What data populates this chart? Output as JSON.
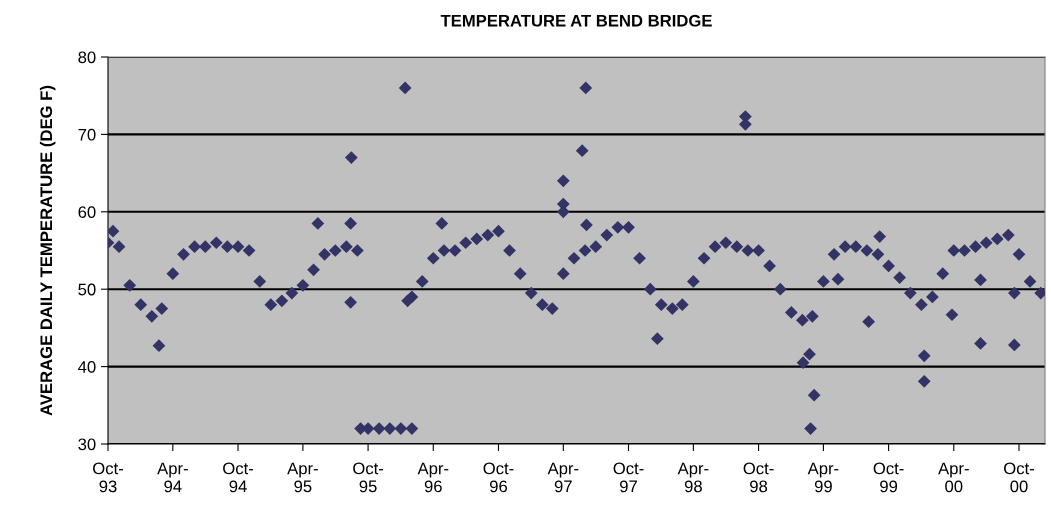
{
  "chart_data": {
    "type": "scatter",
    "title": "TEMPERATURE AT BEND BRIDGE",
    "ylabel": "AVERAGE DAILY TEMPERATURE (DEG F)",
    "xlim": [
      "1993-10-01",
      "2000-12-13"
    ],
    "ylim": [
      30,
      80
    ],
    "yticks": [
      30,
      40,
      50,
      60,
      70,
      80
    ],
    "xticks": [
      {
        "value": "1993-10-01",
        "label": "Oct-\n93"
      },
      {
        "value": "1994-04-01",
        "label": "Apr-\n94"
      },
      {
        "value": "1994-10-01",
        "label": "Oct-\n94"
      },
      {
        "value": "1995-04-01",
        "label": "Apr-\n95"
      },
      {
        "value": "1995-10-01",
        "label": "Oct-\n95"
      },
      {
        "value": "1996-04-01",
        "label": "Apr-\n96"
      },
      {
        "value": "1996-10-01",
        "label": "Oct-\n96"
      },
      {
        "value": "1997-04-01",
        "label": "Apr-\n97"
      },
      {
        "value": "1997-10-01",
        "label": "Oct-\n97"
      },
      {
        "value": "1998-04-01",
        "label": "Apr-\n98"
      },
      {
        "value": "1998-10-01",
        "label": "Oct-\n98"
      },
      {
        "value": "1999-04-01",
        "label": "Apr-\n99"
      },
      {
        "value": "1999-10-01",
        "label": "Oct-\n99"
      },
      {
        "value": "2000-04-01",
        "label": "Apr-\n00"
      },
      {
        "value": "2000-10-01",
        "label": "Oct-\n00"
      }
    ],
    "grid": "y",
    "marker": "diamond",
    "legend": false,
    "series": [
      {
        "color": "#333366",
        "x": [
          "1993-10-01",
          "1993-10-15",
          "1993-11-01",
          "1993-12-01",
          "1994-01-01",
          "1994-02-01",
          "1994-03-01",
          "1994-04-01",
          "1994-05-01",
          "1994-06-01",
          "1994-07-01",
          "1994-08-01",
          "1994-09-01",
          "1994-10-01",
          "1994-11-01",
          "1994-12-01",
          "1995-01-01",
          "1995-02-01",
          "1995-03-01",
          "1995-04-01",
          "1995-05-01",
          "1995-06-01",
          "1995-07-01",
          "1995-08-01",
          "1995-09-01",
          "1996-02-01",
          "1996-03-01",
          "1996-04-01",
          "1996-05-01",
          "1996-06-01",
          "1996-07-01",
          "1996-08-01",
          "1996-09-01",
          "1996-10-01",
          "1996-11-01",
          "1996-12-01",
          "1997-01-01",
          "1997-02-01",
          "1997-03-01",
          "1997-04-01",
          "1997-05-01",
          "1997-06-01",
          "1997-07-01",
          "1997-08-01",
          "1997-09-01",
          "1997-10-01",
          "1997-11-01",
          "1997-12-01",
          "1998-01-01",
          "1998-02-01",
          "1998-03-01",
          "1998-04-01",
          "1998-05-01",
          "1998-06-01",
          "1998-07-01",
          "1998-08-01",
          "1998-09-01",
          "1998-10-01",
          "1998-11-01",
          "1998-12-01",
          "1999-01-01",
          "1999-02-01",
          "1999-03-01",
          "1999-04-01",
          "1999-05-01",
          "1999-06-01",
          "1999-07-01",
          "1999-08-01",
          "1999-09-01",
          "1999-10-01",
          "1999-11-01",
          "1999-12-01",
          "2000-01-01",
          "2000-02-01",
          "2000-03-01",
          "2000-04-01",
          "2000-05-01",
          "2000-06-01",
          "2000-07-01",
          "2000-08-01",
          "2000-09-01",
          "2000-10-01",
          "2000-11-01",
          "2000-12-01",
          "1994-02-21",
          "1995-05-13",
          "1995-08-13",
          "1995-08-15",
          "1995-08-13",
          "1995-09-10",
          "1995-10-01",
          "1995-11-01",
          "1995-12-01",
          "1996-01-01",
          "1996-02-01",
          "1996-01-13",
          "1996-01-20",
          "1996-04-25",
          "1997-04-01",
          "1997-04-01",
          "1997-04-01",
          "1997-05-24",
          "1997-06-03",
          "1997-06-05",
          "1997-12-21",
          "1998-08-25",
          "1998-08-25",
          "1999-02-03",
          "1999-02-21",
          "1999-03-06",
          "1999-02-24",
          "1999-05-12",
          "1999-08-06",
          "1999-09-06",
          "2000-01-09",
          "2000-01-09",
          "2000-03-27",
          "2000-06-15",
          "2000-06-15",
          "2000-09-18",
          "2000-09-18"
        ],
        "values": [
          56,
          57.5,
          55.5,
          50.5,
          48,
          46.5,
          47.5,
          52,
          54.5,
          55.5,
          55.5,
          56,
          55.5,
          55.5,
          55,
          51,
          48,
          48.5,
          49.5,
          50.5,
          52.5,
          54.5,
          55,
          55.5,
          55,
          49,
          51,
          54,
          55,
          55,
          56,
          56.5,
          57,
          57.5,
          55,
          52,
          49.5,
          48,
          47.5,
          52,
          54,
          55,
          55.5,
          57,
          58,
          58,
          54,
          50,
          48,
          47.5,
          48,
          51,
          54,
          55.5,
          56,
          55.5,
          55,
          55,
          53,
          50,
          47,
          46,
          46.5,
          51,
          54.5,
          55.5,
          55.5,
          55,
          54.5,
          53,
          51.5,
          49.5,
          48,
          49,
          52,
          55,
          55,
          55.5,
          56,
          56.5,
          57,
          54.5,
          51,
          49.5,
          42.7,
          58.5,
          58.5,
          67,
          48.3,
          32,
          32,
          32,
          32,
          32,
          32,
          76,
          48.5,
          58.5,
          64,
          61,
          60,
          67.9,
          76,
          58.3,
          43.6,
          72.3,
          71.3,
          40.5,
          41.6,
          36.3,
          32,
          51.3,
          45.8,
          56.8,
          41.4,
          38.1,
          46.7,
          51.2,
          43,
          49.5,
          42.8
        ]
      }
    ]
  }
}
